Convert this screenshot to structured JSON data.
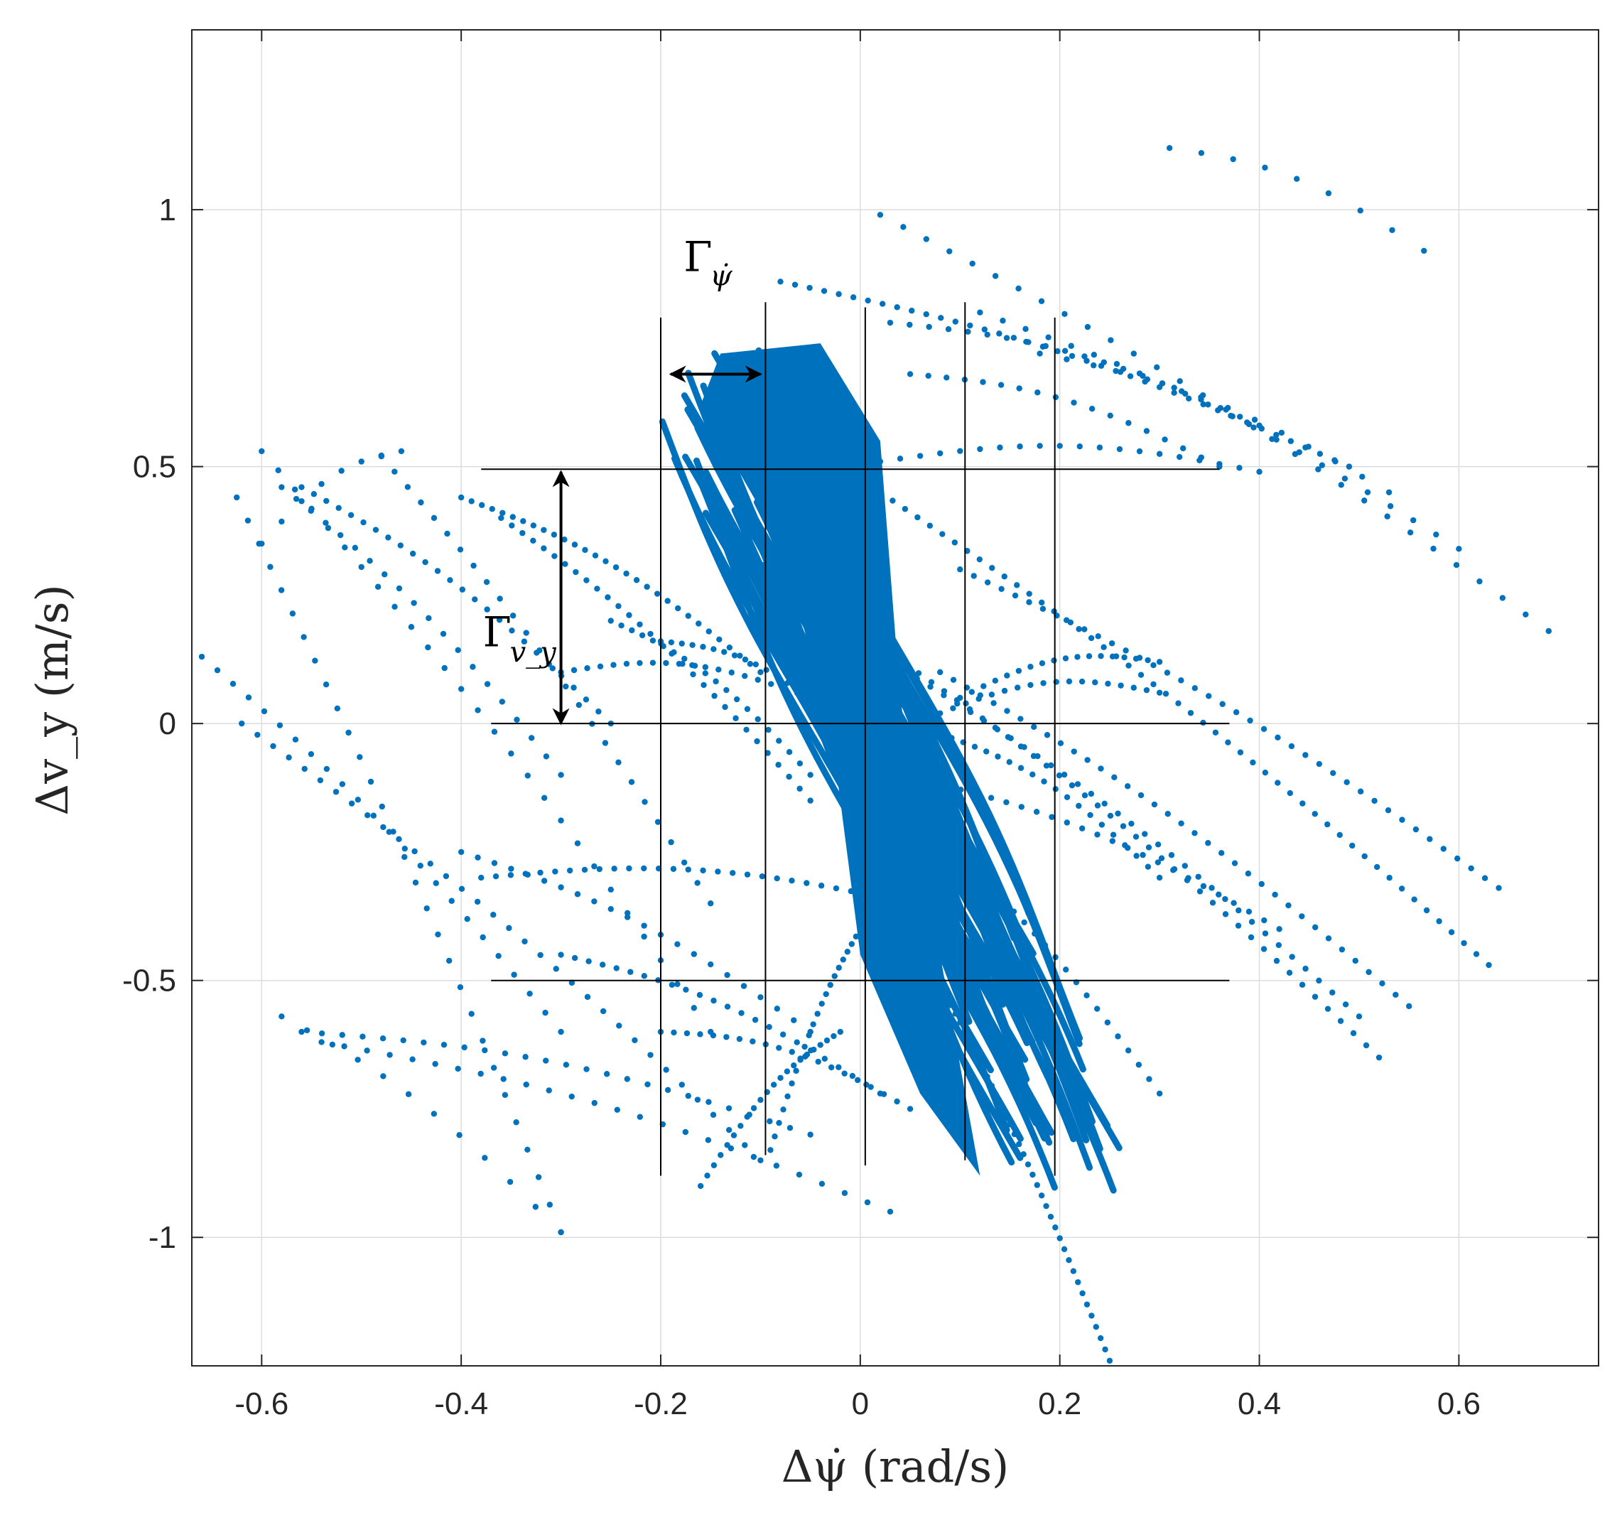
{
  "chart_data": {
    "type": "scatter",
    "title": "",
    "xlabel": "Δψ̇ (rad/s)",
    "ylabel": "Δv_y (m/s)",
    "xlim": [
      -0.67,
      0.74
    ],
    "ylim": [
      -1.25,
      1.35
    ],
    "xticks": [
      -0.6,
      -0.4,
      -0.2,
      0,
      0.2,
      0.4,
      0.6
    ],
    "xtick_labels": [
      "-0.6",
      "-0.4",
      "-0.2",
      "0",
      "0.2",
      "0.4",
      "0.6"
    ],
    "yticks": [
      -1,
      -0.5,
      0,
      0.5,
      1
    ],
    "ytick_labels": [
      "-1",
      "-0.5",
      "0",
      "0.5",
      "1"
    ],
    "grid": true,
    "series_color": "#0072BD",
    "tracks": [
      {
        "x0": 0.31,
        "y0": 1.12,
        "x1": 0.565,
        "y1": 0.92,
        "n": 9
      },
      {
        "x0": 0.02,
        "y0": 0.99,
        "x1": 0.69,
        "y1": 0.18,
        "n": 30
      },
      {
        "x0": -0.08,
        "y0": 0.86,
        "x1": 0.49,
        "y1": 0.5,
        "n": 40
      },
      {
        "x0": 0.03,
        "y0": 0.78,
        "x1": 0.4,
        "y1": 0.58,
        "n": 20
      },
      {
        "x0": 0.12,
        "y0": 0.8,
        "x1": 0.6,
        "y1": 0.34,
        "n": 22
      },
      {
        "x0": 0.05,
        "y0": 0.68,
        "x1": 0.36,
        "y1": 0.5,
        "n": 18
      },
      {
        "x0": 0.02,
        "y0": 0.51,
        "x1": 0.4,
        "y1": 0.49,
        "n": 20
      },
      {
        "x0": 0.18,
        "y0": 0.72,
        "x1": 0.53,
        "y1": 0.45,
        "n": 14
      },
      {
        "x0": 0.02,
        "y0": 0.45,
        "x1": 0.63,
        "y1": -0.47,
        "n": 50
      },
      {
        "x0": 0.1,
        "y0": 0.3,
        "x1": 0.64,
        "y1": -0.32,
        "n": 40
      },
      {
        "x0": 0.02,
        "y0": 0.15,
        "x1": 0.52,
        "y1": -0.65,
        "n": 40
      },
      {
        "x0": 0.03,
        "y0": 0.12,
        "x1": 0.5,
        "y1": -0.57,
        "n": 36
      },
      {
        "x0": 0.08,
        "y0": 0.1,
        "x1": 0.55,
        "y1": -0.55,
        "n": 36
      },
      {
        "x0": 0.1,
        "y0": 0.05,
        "x1": 0.3,
        "y1": 0.12,
        "n": 18
      },
      {
        "x0": 0.08,
        "y0": 0.02,
        "x1": 0.3,
        "y1": 0.06,
        "n": 18
      },
      {
        "x0": 0.08,
        "y0": -0.02,
        "x1": 0.3,
        "y1": -0.3,
        "n": 20
      },
      {
        "x0": 0.06,
        "y0": -0.2,
        "x1": 0.3,
        "y1": -0.72,
        "n": 24
      },
      {
        "x0": 0.04,
        "y0": -0.1,
        "x1": 0.42,
        "y1": -0.4,
        "n": 26
      },
      {
        "x0": 0.05,
        "y0": -0.4,
        "x1": 0.25,
        "y1": -1.24,
        "n": 45
      },
      {
        "x0": -0.625,
        "y0": 0.44,
        "x1": -0.3,
        "y1": -0.99,
        "n": 30
      },
      {
        "x0": -0.6,
        "y0": 0.53,
        "x1": -0.15,
        "y1": -0.6,
        "n": 28
      },
      {
        "x0": -0.58,
        "y0": 0.46,
        "x1": -0.3,
        "y1": -0.1,
        "n": 20
      },
      {
        "x0": -0.56,
        "y0": 0.46,
        "x1": -0.25,
        "y1": 0.0,
        "n": 26
      },
      {
        "x0": -0.48,
        "y0": 0.52,
        "x1": -0.15,
        "y1": -0.35,
        "n": 26
      },
      {
        "x0": -0.46,
        "y0": 0.53,
        "x1": -0.6,
        "y1": 0.35,
        "n": 8
      },
      {
        "x0": -0.66,
        "y0": 0.13,
        "x1": -0.3,
        "y1": -0.6,
        "n": 24
      },
      {
        "x0": -0.62,
        "y0": 0.0,
        "x1": -0.1,
        "y1": -0.85,
        "n": 34
      },
      {
        "x0": -0.58,
        "y0": -0.57,
        "x1": -0.3,
        "y1": -0.99,
        "n": 12
      },
      {
        "x0": -0.56,
        "y0": -0.6,
        "x1": -0.05,
        "y1": -0.8,
        "n": 26
      },
      {
        "x0": -0.54,
        "y0": -0.62,
        "x1": 0.03,
        "y1": -0.95,
        "n": 26
      },
      {
        "x0": -0.4,
        "y0": -0.25,
        "x1": -0.05,
        "y1": -0.6,
        "n": 22
      },
      {
        "x0": -0.4,
        "y0": 0.44,
        "x1": -0.1,
        "y1": 0.1,
        "n": 30
      },
      {
        "x0": -0.36,
        "y0": 0.4,
        "x1": -0.05,
        "y1": -0.15,
        "n": 30
      },
      {
        "x0": -0.38,
        "y0": -0.3,
        "x1": 0.05,
        "y1": -0.35,
        "n": 30
      },
      {
        "x0": -0.25,
        "y0": 0.2,
        "x1": -0.05,
        "y1": -0.1,
        "n": 20
      },
      {
        "x0": -0.2,
        "y0": 0.16,
        "x1": -0.02,
        "y1": 0.0,
        "n": 18
      },
      {
        "x0": -0.3,
        "y0": 0.1,
        "x1": -0.05,
        "y1": 0.05,
        "n": 20
      },
      {
        "x0": -0.16,
        "y0": -0.9,
        "x1": -0.02,
        "y1": -0.6,
        "n": 22
      },
      {
        "x0": -0.09,
        "y0": -0.83,
        "x1": 0.0,
        "y1": -0.4,
        "n": 22
      },
      {
        "x0": -0.3,
        "y0": -0.45,
        "x1": 0.02,
        "y1": -0.72,
        "n": 24
      },
      {
        "x0": -0.2,
        "y0": -0.6,
        "x1": 0.05,
        "y1": -0.75,
        "n": 20
      }
    ],
    "dense_band": {
      "x_start": -0.18,
      "y_start": 0.78,
      "x_end": 0.23,
      "y_end": -0.88,
      "strands": 70
    },
    "annotation_lines": {
      "vertical": [
        {
          "x": -0.2,
          "y_top": 0.79,
          "y_bottom": -0.88
        },
        {
          "x": -0.095,
          "y_top": 0.82,
          "y_bottom": -0.84
        },
        {
          "x": 0.005,
          "y_top": 0.81,
          "y_bottom": -0.86
        },
        {
          "x": 0.105,
          "y_top": 0.82,
          "y_bottom": -0.85
        },
        {
          "x": 0.195,
          "y_top": 0.79,
          "y_bottom": -0.88
        }
      ],
      "horizontal": [
        {
          "y": 0.495,
          "x_left": -0.38,
          "x_right": 0.36
        },
        {
          "y": 0.0,
          "x_left": -0.37,
          "x_right": 0.37
        },
        {
          "y": -0.5,
          "x_left": -0.37,
          "x_right": 0.37
        }
      ]
    },
    "annotations": [
      {
        "label": "Γ",
        "subscript": "ψ̇",
        "kind": "horizontal-arrow",
        "x0": -0.19,
        "x1": -0.1,
        "y": 0.68
      },
      {
        "label": "Γ",
        "subscript": "v_y",
        "kind": "vertical-arrow",
        "x": -0.3,
        "y0": 0.49,
        "y1": 0.0
      }
    ]
  }
}
